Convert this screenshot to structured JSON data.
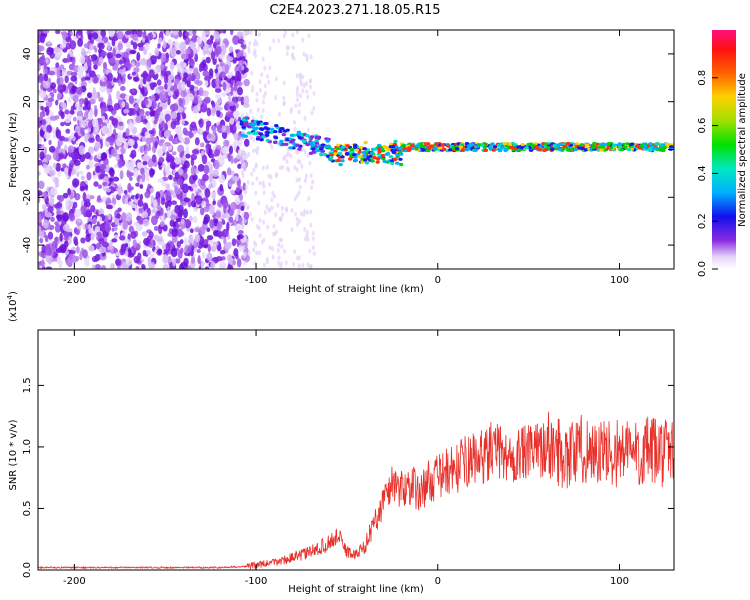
{
  "title": "C2E4.2023.271.18.05.R15",
  "chart_data": [
    {
      "type": "heatmap",
      "xlabel": "Height of straight line (km)",
      "ylabel": "Frequency (Hz)",
      "xlim": [
        -220,
        130
      ],
      "ylim": [
        -50,
        50
      ],
      "xticks": [
        -200,
        -100,
        0,
        100
      ],
      "yticks": [
        -40,
        -20,
        0,
        20,
        40
      ],
      "colorbar": {
        "label": "Normalized spectral amplitude",
        "range": [
          0,
          1
        ],
        "ticks": [
          0.0,
          0.2,
          0.4,
          0.6,
          0.8
        ]
      },
      "grid": false
    },
    {
      "type": "line",
      "xlabel": "Height of straight line (km)",
      "ylabel": "SNR (10 * v/v)",
      "scale_label": "(x10",
      "scale_exp": "4",
      "xlim": [
        -220,
        130
      ],
      "ylim": [
        0,
        1.95
      ],
      "xticks": [
        -200,
        -100,
        0,
        100
      ],
      "yticks": [
        0.0,
        0.5,
        1.0,
        1.5
      ],
      "grid": false,
      "series": [
        {
          "color": "#e8302a",
          "x": [
            -220,
            -200,
            -180,
            -160,
            -140,
            -120,
            -105,
            -95,
            -90,
            -85,
            -80,
            -75,
            -70,
            -65,
            -60,
            -55,
            -50,
            -45,
            -40,
            -35,
            -30,
            -25,
            -20,
            -15,
            -10,
            -5,
            0,
            5,
            10,
            15,
            20,
            25,
            30,
            35,
            40,
            45,
            50,
            55,
            60,
            65,
            70,
            75,
            80,
            85,
            90,
            95,
            100,
            105,
            110,
            115,
            120,
            125,
            130
          ],
          "y": [
            0.02,
            0.02,
            0.02,
            0.02,
            0.02,
            0.02,
            0.03,
            0.05,
            0.06,
            0.08,
            0.1,
            0.12,
            0.15,
            0.18,
            0.22,
            0.28,
            0.15,
            0.12,
            0.2,
            0.38,
            0.55,
            0.72,
            0.65,
            0.7,
            0.62,
            0.72,
            0.75,
            0.8,
            0.82,
            0.88,
            0.9,
            0.92,
            0.98,
            0.95,
            0.9,
            0.94,
            0.95,
            0.98,
            1.0,
            0.98,
            0.94,
            0.96,
            0.98,
            0.97,
            0.94,
            0.96,
            0.95,
            0.97,
            0.95,
            0.96,
            0.95,
            0.96,
            0.95
          ]
        }
      ]
    }
  ]
}
